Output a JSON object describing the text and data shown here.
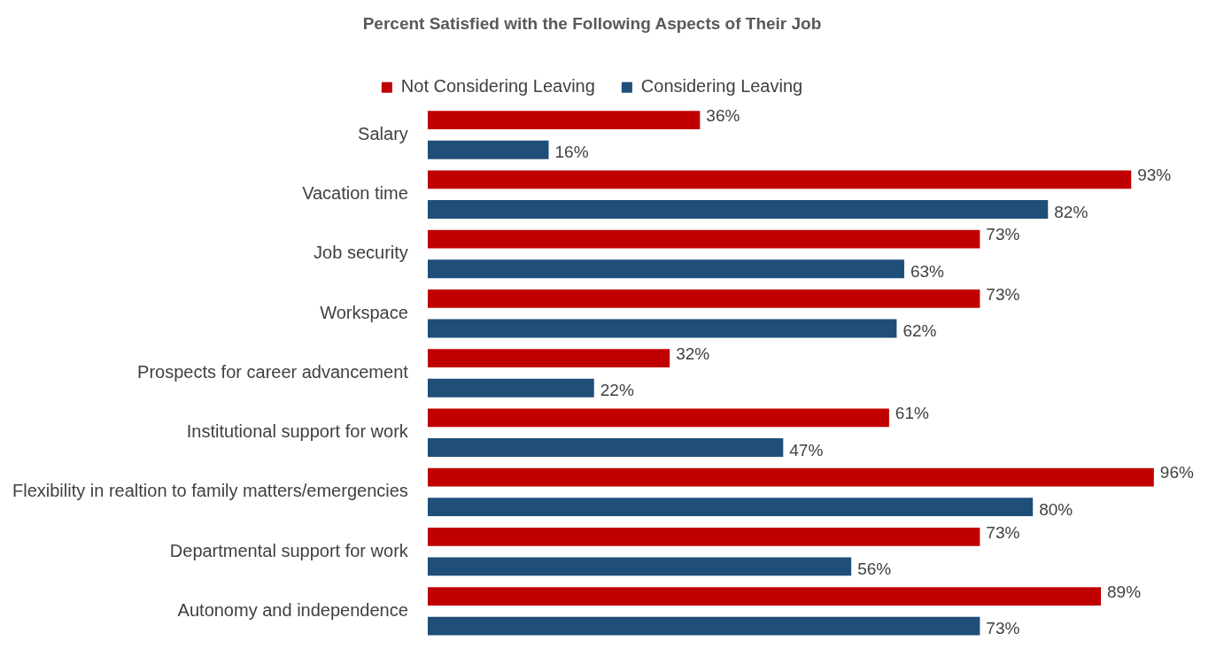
{
  "chart_data": {
    "type": "bar",
    "orientation": "horizontal",
    "title": "Percent Satisfied with the Following Aspects of Their Job",
    "categories": [
      "Salary",
      "Vacation time",
      "Job security",
      "Workspace",
      "Prospects for career advancement",
      "Institutional support for work",
      "Flexibility in realtion to family matters/emergencies",
      "Departmental support for work",
      "Autonomy and independence"
    ],
    "series": [
      {
        "name": "Not Considering Leaving",
        "color": "#c00000",
        "values": [
          36,
          93,
          73,
          73,
          32,
          61,
          96,
          73,
          89
        ],
        "value_labels": [
          "36%",
          "93%",
          "73%",
          "73%",
          "32%",
          "61%",
          "96%",
          "73%",
          "89%"
        ]
      },
      {
        "name": "Considering Leaving",
        "color": "#1f4e79",
        "values": [
          16,
          82,
          63,
          62,
          22,
          47,
          80,
          56,
          73
        ],
        "value_labels": [
          "16%",
          "82%",
          "63%",
          "62%",
          "22%",
          "47%",
          "80%",
          "56%",
          "73%"
        ]
      }
    ],
    "legend": "top",
    "grid": false,
    "tick_labels": "y"
  }
}
